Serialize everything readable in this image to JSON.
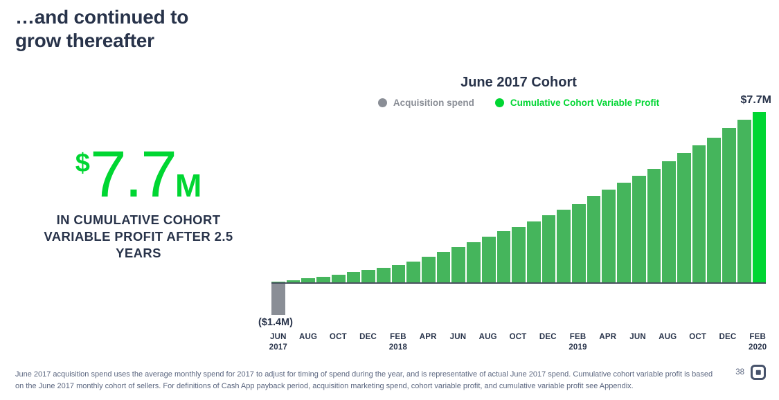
{
  "slide": {
    "title": "…and continued to\ngrow thereafter",
    "page_number": "38"
  },
  "stat": {
    "currency_symbol": "$",
    "value": "7.7",
    "unit": "M",
    "caption": "IN CUMULATIVE COHORT VARIABLE PROFIT AFTER 2.5 YEARS",
    "accent_color": "#00D632"
  },
  "chart_data": {
    "type": "bar",
    "title": "June 2017 Cohort",
    "peak_label": "$7.7M",
    "negative_label": "($1.4M)",
    "legend_position": "top",
    "grid": false,
    "ylim": [
      -1.6,
      7.7
    ],
    "legend": [
      {
        "label": "Acquisition spend",
        "color": "#8A8E96"
      },
      {
        "label": "Cumulative Cohort Variable Profit",
        "color": "#00D632"
      }
    ],
    "x": [
      "Jun 2017",
      "Jul 2017",
      "Aug 2017",
      "Sep 2017",
      "Oct 2017",
      "Nov 2017",
      "Dec 2017",
      "Jan 2018",
      "Feb 2018",
      "Mar 2018",
      "Apr 2018",
      "May 2018",
      "Jun 2018",
      "Jul 2018",
      "Aug 2018",
      "Sep 2018",
      "Oct 2018",
      "Nov 2018",
      "Dec 2018",
      "Jan 2019",
      "Feb 2019",
      "Mar 2019",
      "Apr 2019",
      "May 2019",
      "Jun 2019",
      "Jul 2019",
      "Aug 2019",
      "Sep 2019",
      "Oct 2019",
      "Nov 2019",
      "Dec 2019",
      "Jan 2020",
      "Feb 2020"
    ],
    "series": [
      {
        "name": "Acquisition spend",
        "color": "#8A8E96",
        "x": "Jun 2017",
        "x_index": 0,
        "value": -1.4
      },
      {
        "name": "Cumulative Cohort Variable Profit",
        "color": "#45B55C",
        "final_bar_color": "#00D632",
        "values": [
          0.05,
          0.13,
          0.23,
          0.29,
          0.38,
          0.49,
          0.58,
          0.68,
          0.81,
          0.96,
          1.2,
          1.41,
          1.62,
          1.83,
          2.09,
          2.33,
          2.52,
          2.76,
          3.04,
          3.3,
          3.56,
          3.92,
          4.2,
          4.51,
          4.83,
          5.14,
          5.5,
          5.86,
          6.2,
          6.54,
          6.99,
          7.35,
          7.7
        ]
      }
    ],
    "x_ticks": [
      {
        "month": "JUN",
        "year": "2017"
      },
      {
        "month": "AUG"
      },
      {
        "month": "OCT"
      },
      {
        "month": "DEC"
      },
      {
        "month": "FEB",
        "year": "2018"
      },
      {
        "month": "APR"
      },
      {
        "month": "JUN"
      },
      {
        "month": "AUG"
      },
      {
        "month": "OCT"
      },
      {
        "month": "DEC"
      },
      {
        "month": "FEB",
        "year": "2019"
      },
      {
        "month": "APR"
      },
      {
        "month": "JUN"
      },
      {
        "month": "AUG"
      },
      {
        "month": "OCT"
      },
      {
        "month": "DEC"
      },
      {
        "month": "FEB",
        "year": "2020"
      }
    ]
  },
  "footnote": {
    "line1": "June 2017 acquisition spend uses the average monthly spend for 2017 to adjust for timing of spend during the year, and is representative of actual June 2017 spend. Cumulative cohort variable profit is based",
    "line2": "on the June 2017 monthly cohort of sellers. For definitions of Cash App payback period, acquisition marketing spend, cohort variable profit, and cumulative variable profit see Appendix."
  },
  "colors": {
    "navy_text": "#28334A",
    "bar_green": "#45B55C",
    "bright_green": "#00D632",
    "gray": "#8A8E96",
    "footnote_gray": "#5C6780",
    "baseline": "#49515F"
  }
}
